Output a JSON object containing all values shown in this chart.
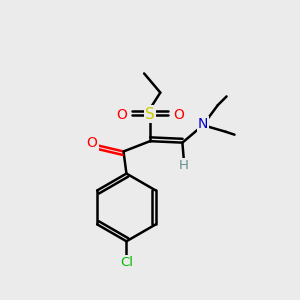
{
  "bg_color": "#ebebeb",
  "colors": {
    "O": "#ff0000",
    "S": "#cccc00",
    "N": "#0000cc",
    "Cl": "#00bb00",
    "H": "#6b8e8e",
    "C": "#000000"
  }
}
